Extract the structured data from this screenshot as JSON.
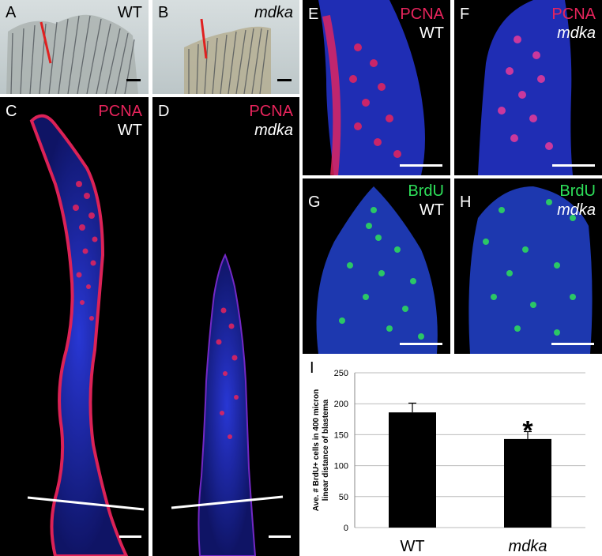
{
  "panels": {
    "A": {
      "letter": "A",
      "genotype": "WT"
    },
    "B": {
      "letter": "B",
      "genotype": "mdka"
    },
    "C": {
      "letter": "C",
      "stain": "PCNA",
      "genotype": "WT"
    },
    "D": {
      "letter": "D",
      "stain": "PCNA",
      "genotype": "mdka"
    },
    "E": {
      "letter": "E",
      "stain": "PCNA",
      "genotype": "WT"
    },
    "F": {
      "letter": "F",
      "stain": "PCNA",
      "genotype": "mdka"
    },
    "G": {
      "letter": "G",
      "stain": "BrdU",
      "genotype": "WT"
    },
    "H": {
      "letter": "H",
      "stain": "BrdU",
      "genotype": "mdka"
    },
    "I": {
      "letter": "I"
    }
  },
  "colors": {
    "pcna": "#e8245c",
    "brdu": "#2ee05a",
    "nuclei": "#1a2fd6",
    "cut_line": "#e02020"
  },
  "chart_data": {
    "type": "bar",
    "categories": [
      "WT",
      "mdka"
    ],
    "values": [
      186,
      143
    ],
    "errors": [
      15,
      12
    ],
    "significance": [
      "",
      "*"
    ],
    "ylabel": "Ave. # BrdU+ cells in 400 micron linear distance of blastema",
    "ylabel_lines": [
      "Ave. # BrdU+ cells in 400 micron",
      "linear distance of blastema"
    ],
    "ylim": [
      0,
      250
    ],
    "yticks": [
      0,
      50,
      100,
      150,
      200,
      250
    ],
    "grid": true
  }
}
